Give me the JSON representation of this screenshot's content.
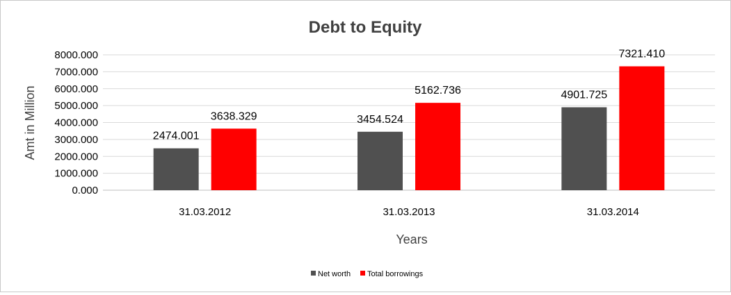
{
  "chart_data": {
    "type": "bar",
    "title": "Debt to Equity",
    "xlabel": "Years",
    "ylabel": "Amt in Million",
    "categories": [
      "31.03.2012",
      "31.03.2013",
      "31.03.2014"
    ],
    "series": [
      {
        "name": "Net worth",
        "color": "#505050",
        "values": [
          2474.001,
          3454.524,
          4901.725
        ],
        "labels": [
          "2474.001",
          "3454.524",
          "4901.725"
        ]
      },
      {
        "name": "Total borrowings",
        "color": "#ff0000",
        "values": [
          3638.329,
          5162.736,
          7321.41
        ],
        "labels": [
          "3638.329",
          "5162.736",
          "7321.410"
        ]
      }
    ],
    "ylim": [
      0,
      8000
    ],
    "yticks": [
      "0.000",
      "1000.000",
      "2000.000",
      "3000.000",
      "4000.000",
      "5000.000",
      "6000.000",
      "7000.000",
      "8000.000"
    ],
    "grid": true,
    "legend_position": "bottom"
  }
}
